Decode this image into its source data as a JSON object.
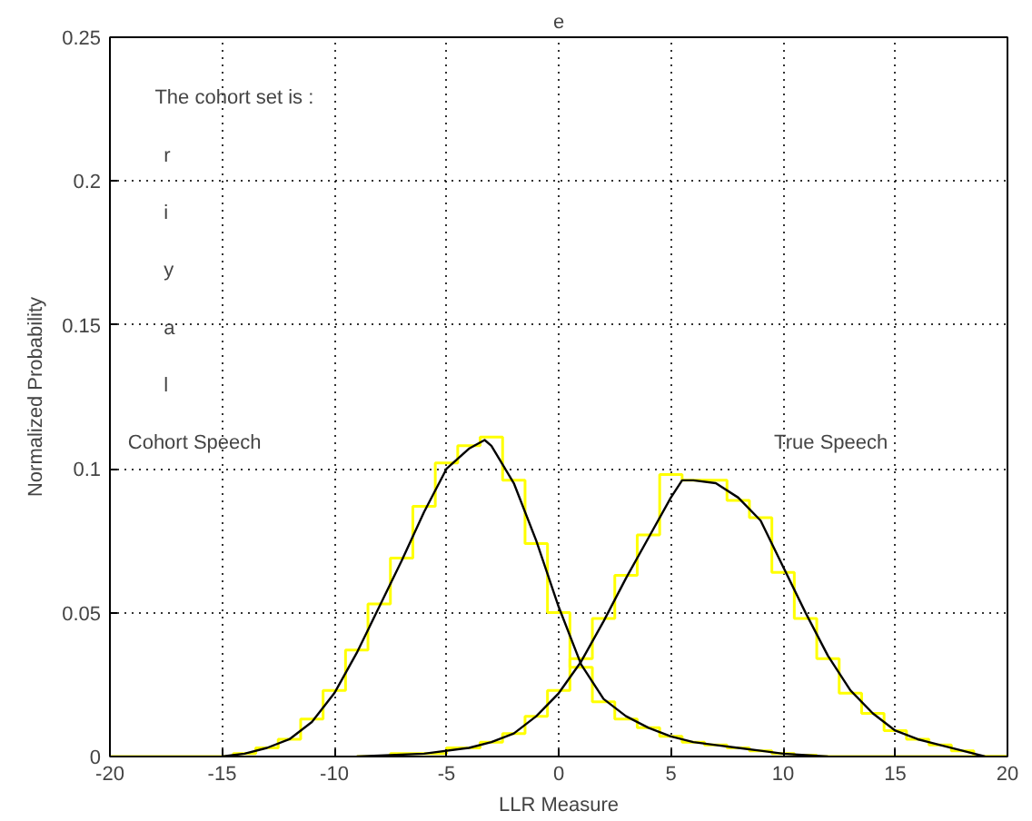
{
  "chart_data": {
    "type": "line",
    "title": "e",
    "xlabel": "LLR Measure",
    "ylabel": "Normalized Probability",
    "xlim": [
      -20,
      20
    ],
    "ylim": [
      0,
      0.25
    ],
    "xticks": [
      -20,
      -15,
      -10,
      -5,
      0,
      5,
      10,
      15,
      20
    ],
    "yticks": [
      0,
      0.05,
      0.1,
      0.15,
      0.2,
      0.25
    ],
    "grid": true,
    "line_style": "solid",
    "annotations": [
      "The cohort set is :",
      "r",
      "i",
      "y",
      "a",
      "l",
      "Cohort Speech",
      "True Speech"
    ],
    "series": [
      {
        "type": "step",
        "color": "#ffff00",
        "x": [
          -20,
          -15,
          -14,
          -13,
          -12,
          -11,
          -10,
          -9,
          -8,
          -7,
          -6,
          -5,
          -4,
          -3,
          -2,
          -1,
          0,
          1,
          2,
          3,
          4,
          5,
          6,
          7,
          8,
          9,
          10,
          11,
          12,
          13,
          20
        ],
        "values": [
          0,
          0,
          0.001,
          0.003,
          0.006,
          0.013,
          0.023,
          0.037,
          0.053,
          0.069,
          0.087,
          0.102,
          0.108,
          0.111,
          0.096,
          0.074,
          0.05,
          0.031,
          0.019,
          0.013,
          0.01,
          0.007,
          0.005,
          0.004,
          0.003,
          0.002,
          0.001,
          0.0005,
          0,
          0,
          0
        ]
      },
      {
        "type": "step",
        "color": "#ffff00",
        "x": [
          -9,
          -6,
          -4,
          -3,
          -2,
          -1,
          0,
          1,
          2,
          3,
          4,
          5,
          6,
          7,
          8,
          9,
          10,
          11,
          12,
          13,
          14,
          15,
          16,
          17,
          18,
          19,
          20
        ],
        "values": [
          0,
          0.001,
          0.003,
          0.005,
          0.008,
          0.014,
          0.023,
          0.034,
          0.048,
          0.063,
          0.077,
          0.098,
          0.096,
          0.096,
          0.089,
          0.083,
          0.064,
          0.048,
          0.034,
          0.022,
          0.015,
          0.009,
          0.006,
          0.004,
          0.002,
          0,
          0
        ]
      },
      {
        "color": "#000000",
        "x": [
          -15,
          -14,
          -13,
          -12,
          -11,
          -10,
          -9,
          -8,
          -7,
          -6,
          -5,
          -4,
          -3.3,
          -3,
          -2,
          -1,
          0,
          1,
          2,
          3,
          4,
          5,
          6,
          7,
          8,
          9,
          10,
          11,
          12
        ],
        "values": [
          0,
          0.001,
          0.003,
          0.006,
          0.012,
          0.022,
          0.036,
          0.052,
          0.068,
          0.085,
          0.1,
          0.107,
          0.11,
          0.108,
          0.095,
          0.075,
          0.052,
          0.032,
          0.02,
          0.014,
          0.01,
          0.007,
          0.005,
          0.004,
          0.003,
          0.002,
          0.001,
          0.0005,
          0
        ]
      },
      {
        "color": "#000000",
        "x": [
          -9,
          -6,
          -4,
          -3,
          -2,
          -1,
          0,
          1,
          2,
          3,
          4,
          5,
          5.5,
          6,
          7,
          8,
          9,
          10,
          11,
          12,
          13,
          14,
          15,
          16,
          17,
          18,
          19
        ],
        "values": [
          0,
          0.001,
          0.003,
          0.005,
          0.008,
          0.014,
          0.022,
          0.033,
          0.047,
          0.062,
          0.076,
          0.09,
          0.096,
          0.096,
          0.095,
          0.09,
          0.082,
          0.066,
          0.05,
          0.035,
          0.023,
          0.015,
          0.009,
          0.006,
          0.004,
          0.002,
          0
        ]
      }
    ]
  }
}
